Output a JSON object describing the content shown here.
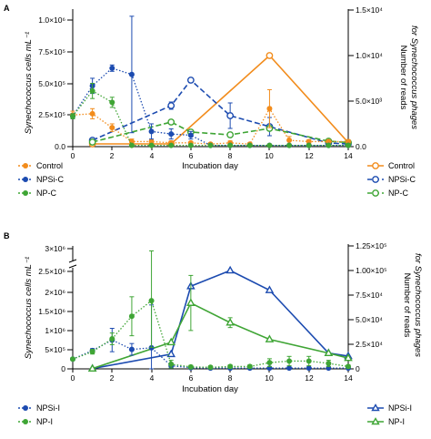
{
  "panels": [
    {
      "letter": "A",
      "ylabel_left": "Synechococcus cells mL⁻¹",
      "ylabel_right": [
        "Number of reads",
        "for Synechococcus phages"
      ],
      "xlabel": "Incubation day",
      "left_ticks": [
        "0.0",
        "2.5×10⁵",
        "5.0×10⁵",
        "7.5×10⁵",
        "1.0×10⁶"
      ],
      "right_ticks": [
        "0.0",
        "5.0×10³",
        "1.0×10⁴",
        "1.5×10⁴"
      ],
      "x_ticks": [
        "0",
        "2",
        "4",
        "6",
        "8",
        "10",
        "12",
        "14"
      ],
      "legend_left": [
        "Control",
        "NPSi-C",
        "NP-C"
      ],
      "legend_right": [
        "Control",
        "NPSi-C",
        "NP-C"
      ]
    },
    {
      "letter": "B",
      "ylabel_left": "Synechococcus cells mL⁻¹",
      "ylabel_right": [
        "Number of reads",
        "for Synechococcus phages"
      ],
      "xlabel": "Incubation day",
      "left_ticks": [
        "0",
        "5×10⁵",
        "1×10⁶",
        "1.5×10⁶",
        "2×10⁶",
        "2.5×10⁶",
        "3×10⁶"
      ],
      "right_ticks": [
        "0",
        "2.5×10⁴",
        "5.0×10⁴",
        "7.5×10⁴",
        "1.00×10⁵",
        "1.25×10⁵"
      ],
      "x_ticks": [
        "0",
        "2",
        "4",
        "6",
        "8",
        "10",
        "12",
        "14"
      ],
      "legend_left": [
        "NPSi-I",
        "NP-I"
      ],
      "legend_right": [
        "NPSi-I",
        "NP-I"
      ]
    }
  ],
  "colors": {
    "control": "#F28C1C",
    "npsi": "#1C4BB0",
    "np": "#3FA535",
    "axis": "#000000"
  },
  "chart_data": [
    {
      "type": "line",
      "panel": "A",
      "xlabel": "Incubation day",
      "ylabel": "Synechococcus cells mL⁻¹",
      "y2label": "Number of reads for Synechococcus phages",
      "xlim": [
        0,
        14
      ],
      "ylim": [
        0,
        1000000
      ],
      "y2lim": [
        0,
        15000
      ],
      "series": [
        {
          "name": "Control",
          "axis": "left",
          "style": "dotted",
          "marker": "filled-circle",
          "color": "#F28C1C",
          "x": [
            0,
            1,
            2,
            3,
            4,
            5,
            6,
            7,
            8,
            9,
            10,
            11,
            12,
            13,
            14
          ],
          "y": [
            250000,
            260000,
            150000,
            40000,
            40000,
            30000,
            30000,
            20000,
            30000,
            20000,
            300000,
            50000,
            40000,
            40000,
            40000
          ],
          "err": [
            30000,
            40000,
            30000,
            20000,
            15000,
            15000,
            10000,
            10000,
            15000,
            10000,
            150000,
            30000,
            15000,
            15000,
            15000
          ]
        },
        {
          "name": "NPSi-C",
          "axis": "left",
          "style": "dotted",
          "marker": "filled-circle",
          "color": "#1C4BB0",
          "x": [
            0,
            1,
            2,
            3,
            4,
            5,
            6,
            7,
            8,
            9,
            10,
            11,
            12,
            13,
            14
          ],
          "y": [
            240000,
            480000,
            620000,
            570000,
            120000,
            100000,
            90000,
            10000,
            10000,
            10000,
            10000,
            10000,
            10000,
            10000,
            10000
          ],
          "err": [
            20000,
            60000,
            25000,
            460000,
            60000,
            40000,
            30000,
            5000,
            5000,
            5000,
            5000,
            5000,
            5000,
            5000,
            5000
          ]
        },
        {
          "name": "NP-C",
          "axis": "left",
          "style": "dotted",
          "marker": "filled-circle",
          "color": "#3FA535",
          "x": [
            0,
            1,
            2,
            3,
            4,
            5,
            6,
            7,
            8,
            9,
            10,
            11,
            12,
            13,
            14
          ],
          "y": [
            240000,
            440000,
            350000,
            10000,
            10000,
            10000,
            10000,
            10000,
            10000,
            10000,
            10000,
            10000,
            10000,
            10000,
            10000
          ],
          "err": [
            20000,
            60000,
            40000,
            5000,
            5000,
            5000,
            5000,
            5000,
            5000,
            5000,
            5000,
            5000,
            5000,
            5000,
            5000
          ]
        },
        {
          "name": "Control",
          "axis": "right",
          "style": "solid",
          "marker": "open-circle",
          "color": "#F28C1C",
          "x": [
            1,
            5,
            10,
            14
          ],
          "y": [
            300,
            300,
            10000,
            450
          ]
        },
        {
          "name": "NPSi-C",
          "axis": "right",
          "style": "dashed",
          "marker": "open-circle",
          "color": "#1C4BB0",
          "x": [
            1,
            5,
            6,
            8,
            10,
            13,
            14
          ],
          "y": [
            700,
            4500,
            7300,
            3400,
            2200,
            400,
            300
          ],
          "err": [
            0,
            400,
            0,
            1400,
            1000,
            0,
            0
          ]
        },
        {
          "name": "NP-C",
          "axis": "right",
          "style": "dashed",
          "marker": "open-circle",
          "color": "#3FA535",
          "x": [
            1,
            5,
            6,
            8,
            10,
            13,
            14
          ],
          "y": [
            500,
            2700,
            1600,
            1300,
            2000,
            600,
            450
          ],
          "err": [
            0,
            0,
            0,
            0,
            0,
            0,
            0
          ]
        }
      ]
    },
    {
      "type": "line",
      "panel": "B",
      "xlabel": "Incubation day",
      "ylabel": "Synechococcus cells mL⁻¹",
      "y2label": "Number of reads for Synechococcus phages",
      "xlim": [
        0,
        14
      ],
      "ylim": [
        0,
        3000000
      ],
      "y2lim": [
        0,
        125000
      ],
      "series": [
        {
          "name": "NPSi-I",
          "axis": "left",
          "style": "dotted",
          "marker": "filled-circle",
          "color": "#1C4BB0",
          "x": [
            0,
            1,
            2,
            3,
            4,
            5,
            6,
            7,
            8,
            9,
            10,
            11,
            12,
            13,
            14
          ],
          "y": [
            250000,
            470000,
            740000,
            500000,
            540000,
            80000,
            30000,
            20000,
            20000,
            20000,
            20000,
            20000,
            20000,
            20000,
            20000
          ],
          "err": [
            30000,
            50000,
            300000,
            150000,
            1100000,
            60000,
            20000,
            10000,
            10000,
            10000,
            10000,
            10000,
            10000,
            10000,
            10000
          ]
        },
        {
          "name": "NP-I",
          "axis": "left",
          "style": "dotted",
          "marker": "filled-circle",
          "color": "#3FA535",
          "x": [
            0,
            1,
            2,
            3,
            4,
            5,
            6,
            7,
            8,
            9,
            10,
            11,
            12,
            13,
            14
          ],
          "y": [
            250000,
            440000,
            770000,
            1350000,
            1750000,
            120000,
            50000,
            40000,
            60000,
            60000,
            160000,
            200000,
            200000,
            140000,
            60000
          ],
          "err": [
            30000,
            60000,
            150000,
            500000,
            1200000,
            100000,
            40000,
            30000,
            40000,
            40000,
            100000,
            120000,
            120000,
            80000,
            40000
          ]
        },
        {
          "name": "NPSi-I",
          "axis": "right",
          "style": "solid",
          "marker": "open-triangle",
          "color": "#1C4BB0",
          "x": [
            1,
            5,
            6,
            8,
            10,
            13,
            14
          ],
          "y": [
            300,
            15000,
            84000,
            100000,
            80000,
            16000,
            13000
          ]
        },
        {
          "name": "NP-I",
          "axis": "right",
          "style": "solid",
          "marker": "open-triangle",
          "color": "#3FA535",
          "x": [
            1,
            5,
            6,
            8,
            10,
            13,
            14
          ],
          "y": [
            300,
            27000,
            67000,
            47000,
            30000,
            16000,
            11000
          ],
          "err": [
            0,
            0,
            28000,
            5000,
            0,
            0,
            0
          ]
        }
      ]
    }
  ]
}
